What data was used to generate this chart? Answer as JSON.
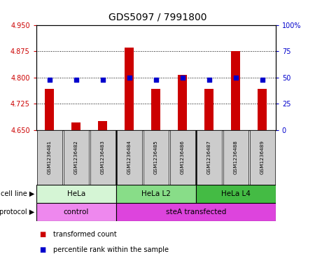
{
  "title": "GDS5097 / 7991800",
  "samples": [
    "GSM1236481",
    "GSM1236482",
    "GSM1236483",
    "GSM1236484",
    "GSM1236485",
    "GSM1236486",
    "GSM1236487",
    "GSM1236488",
    "GSM1236489"
  ],
  "red_values": [
    4.768,
    4.672,
    4.675,
    4.885,
    4.768,
    4.808,
    4.768,
    4.875,
    4.768
  ],
  "blue_values": [
    48,
    48,
    48,
    50,
    48,
    50,
    48,
    50,
    48
  ],
  "ylim_left": [
    4.65,
    4.95
  ],
  "ylim_right": [
    0,
    100
  ],
  "yticks_left": [
    4.65,
    4.725,
    4.8,
    4.875,
    4.95
  ],
  "yticks_right": [
    0,
    25,
    50,
    75,
    100
  ],
  "ytick_labels_right": [
    "0",
    "25",
    "50",
    "75",
    "100%"
  ],
  "cell_line_groups": [
    {
      "label": "HeLa",
      "start": 0,
      "end": 3,
      "color": "#d5f5d5"
    },
    {
      "label": "HeLa L2",
      "start": 3,
      "end": 6,
      "color": "#88dd88"
    },
    {
      "label": "HeLa L4",
      "start": 6,
      "end": 9,
      "color": "#44bb44"
    }
  ],
  "protocol_groups": [
    {
      "label": "control",
      "start": 0,
      "end": 3,
      "color": "#ee88ee"
    },
    {
      "label": "steA transfected",
      "start": 3,
      "end": 9,
      "color": "#dd44dd"
    }
  ],
  "bar_color": "#cc0000",
  "dot_color": "#0000cc",
  "bar_bottom": 4.65,
  "dot_size": 22,
  "grid_color": "black",
  "left_tick_color": "#cc0000",
  "right_tick_color": "#0000cc",
  "legend_items": [
    {
      "label": "transformed count",
      "color": "#cc0000"
    },
    {
      "label": "percentile rank within the sample",
      "color": "#0000cc"
    }
  ],
  "sample_box_color": "#cccccc"
}
